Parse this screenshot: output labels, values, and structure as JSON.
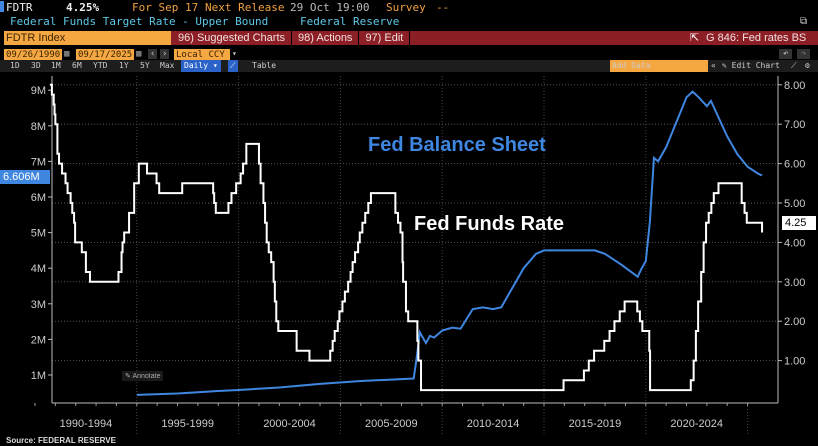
{
  "header": {
    "ticker": "FDTR",
    "value": "4.25%",
    "for_label": "For Sep 17",
    "next_release_label": "Next Release",
    "next_release_value": "29 Oct 19:00",
    "survey_label": "Survey",
    "survey_value": "--",
    "description": "Federal Funds Target Rate - Upper Bound",
    "source_name": "Federal Reserve"
  },
  "toolbar": {
    "security": "FDTR Index",
    "suggested": "96) Suggested Charts",
    "actions": "98) Actions",
    "edit": "97) Edit",
    "chart_name": "G 846: Fed rates BS",
    "start_date": "09/26/1990",
    "end_date": "09/17/2025",
    "currency": "Local CCY",
    "periods": [
      "1D",
      "3D",
      "1M",
      "6M",
      "YTD",
      "1Y",
      "5Y",
      "Max"
    ],
    "frequency": "Daily",
    "table_label": "Table",
    "add_data_placeholder": "Add Data",
    "edit_chart": "Edit Chart",
    "annotate": "Annotate"
  },
  "chart_data": {
    "type": "line",
    "x_tick_labels": [
      "1990-1994",
      "1995-1999",
      "2000-2004",
      "2005-2009",
      "2010-2014",
      "2015-2019",
      "2020-2024"
    ],
    "xlim": [
      1990,
      2025.8
    ],
    "left_axis": {
      "ticks": [
        "1M",
        "2M",
        "3M",
        "4M",
        "5M",
        "6M",
        "7M",
        "8M",
        "9M"
      ],
      "ylim": [
        0,
        9.2
      ]
    },
    "right_axis": {
      "ticks": [
        "1.00",
        "2.00",
        "3.00",
        "4.00",
        "5.00",
        "6.00",
        "7.00",
        "8.00"
      ],
      "ylim": [
        0,
        8.2
      ]
    },
    "grid": true,
    "source": "Source: FEDERAL RESERVE",
    "series": [
      {
        "name": "Fed Balance Sheet",
        "axis": "left",
        "color": "#3f86e0",
        "last_label": "6.606M",
        "points": [
          [
            1995,
            0.44
          ],
          [
            1997,
            0.48
          ],
          [
            1999,
            0.55
          ],
          [
            2000,
            0.58
          ],
          [
            2002,
            0.65
          ],
          [
            2004,
            0.75
          ],
          [
            2006,
            0.83
          ],
          [
            2008.6,
            0.9
          ],
          [
            2008.75,
            1.5
          ],
          [
            2008.9,
            2.2
          ],
          [
            2009.2,
            1.9
          ],
          [
            2009.4,
            2.1
          ],
          [
            2009.6,
            2.05
          ],
          [
            2010,
            2.25
          ],
          [
            2010.5,
            2.33
          ],
          [
            2010.9,
            2.3
          ],
          [
            2011.5,
            2.85
          ],
          [
            2012,
            2.9
          ],
          [
            2012.5,
            2.85
          ],
          [
            2012.9,
            2.9
          ],
          [
            2013.5,
            3.5
          ],
          [
            2014,
            4.0
          ],
          [
            2014.6,
            4.4
          ],
          [
            2015,
            4.5
          ],
          [
            2017.5,
            4.5
          ],
          [
            2018,
            4.4
          ],
          [
            2018.8,
            4.1
          ],
          [
            2019.6,
            3.76
          ],
          [
            2019.8,
            4.0
          ],
          [
            2020.0,
            4.2
          ],
          [
            2020.2,
            5.3
          ],
          [
            2020.4,
            7.1
          ],
          [
            2020.6,
            7.0
          ],
          [
            2021,
            7.4
          ],
          [
            2021.5,
            8.1
          ],
          [
            2022.0,
            8.8
          ],
          [
            2022.3,
            8.96
          ],
          [
            2022.6,
            8.8
          ],
          [
            2023.0,
            8.55
          ],
          [
            2023.2,
            8.7
          ],
          [
            2023.6,
            8.2
          ],
          [
            2024.0,
            7.7
          ],
          [
            2024.5,
            7.2
          ],
          [
            2025.0,
            6.85
          ],
          [
            2025.5,
            6.66
          ],
          [
            2025.71,
            6.606
          ]
        ]
      },
      {
        "name": "Fed Funds Rate",
        "axis": "right",
        "color": "#ffffff",
        "last_label": "4.25",
        "step": true,
        "points": [
          [
            1990.73,
            8.0
          ],
          [
            1990.83,
            7.75
          ],
          [
            1990.92,
            7.5
          ],
          [
            1990.96,
            7.25
          ],
          [
            1991.0,
            7.0
          ],
          [
            1991.1,
            6.25
          ],
          [
            1991.18,
            6.0
          ],
          [
            1991.33,
            5.75
          ],
          [
            1991.5,
            5.5
          ],
          [
            1991.6,
            5.25
          ],
          [
            1991.75,
            5.0
          ],
          [
            1991.83,
            4.75
          ],
          [
            1991.92,
            4.5
          ],
          [
            1991.97,
            4.0
          ],
          [
            1992.3,
            3.75
          ],
          [
            1992.5,
            3.25
          ],
          [
            1992.7,
            3.0
          ],
          [
            1994.1,
            3.25
          ],
          [
            1994.25,
            3.75
          ],
          [
            1994.3,
            4.0
          ],
          [
            1994.38,
            4.25
          ],
          [
            1994.62,
            4.75
          ],
          [
            1994.87,
            5.5
          ],
          [
            1995.1,
            6.0
          ],
          [
            1995.5,
            5.75
          ],
          [
            1995.97,
            5.5
          ],
          [
            1996.1,
            5.25
          ],
          [
            1997.23,
            5.5
          ],
          [
            1998.75,
            5.25
          ],
          [
            1998.8,
            5.0
          ],
          [
            1998.88,
            4.75
          ],
          [
            1999.5,
            5.0
          ],
          [
            1999.65,
            5.25
          ],
          [
            1999.88,
            5.5
          ],
          [
            2000.1,
            5.75
          ],
          [
            2000.22,
            6.0
          ],
          [
            2000.38,
            6.5
          ],
          [
            2001.0,
            6.0
          ],
          [
            2001.08,
            5.5
          ],
          [
            2001.22,
            5.0
          ],
          [
            2001.3,
            4.5
          ],
          [
            2001.38,
            4.0
          ],
          [
            2001.48,
            3.75
          ],
          [
            2001.6,
            3.5
          ],
          [
            2001.72,
            3.0
          ],
          [
            2001.78,
            2.5
          ],
          [
            2001.85,
            2.0
          ],
          [
            2001.95,
            1.75
          ],
          [
            2002.85,
            1.25
          ],
          [
            2003.48,
            1.0
          ],
          [
            2004.5,
            1.25
          ],
          [
            2004.62,
            1.5
          ],
          [
            2004.72,
            1.75
          ],
          [
            2004.87,
            2.0
          ],
          [
            2004.95,
            2.25
          ],
          [
            2005.1,
            2.5
          ],
          [
            2005.22,
            2.75
          ],
          [
            2005.38,
            3.0
          ],
          [
            2005.5,
            3.25
          ],
          [
            2005.6,
            3.5
          ],
          [
            2005.72,
            3.75
          ],
          [
            2005.87,
            4.0
          ],
          [
            2005.95,
            4.25
          ],
          [
            2006.08,
            4.5
          ],
          [
            2006.22,
            4.75
          ],
          [
            2006.37,
            5.0
          ],
          [
            2006.5,
            5.25
          ],
          [
            2007.7,
            4.75
          ],
          [
            2007.83,
            4.5
          ],
          [
            2007.95,
            4.25
          ],
          [
            2008.05,
            3.5
          ],
          [
            2008.08,
            3.0
          ],
          [
            2008.22,
            2.25
          ],
          [
            2008.33,
            2.0
          ],
          [
            2008.78,
            1.5
          ],
          [
            2008.83,
            1.0
          ],
          [
            2008.96,
            0.25
          ],
          [
            2015.96,
            0.5
          ],
          [
            2016.96,
            0.75
          ],
          [
            2017.2,
            1.0
          ],
          [
            2017.46,
            1.25
          ],
          [
            2017.96,
            1.5
          ],
          [
            2018.22,
            1.75
          ],
          [
            2018.46,
            2.0
          ],
          [
            2018.72,
            2.25
          ],
          [
            2018.96,
            2.5
          ],
          [
            2019.58,
            2.25
          ],
          [
            2019.71,
            2.0
          ],
          [
            2019.83,
            1.75
          ],
          [
            2020.17,
            1.25
          ],
          [
            2020.21,
            0.25
          ],
          [
            2022.21,
            0.5
          ],
          [
            2022.35,
            1.0
          ],
          [
            2022.46,
            1.75
          ],
          [
            2022.57,
            2.5
          ],
          [
            2022.72,
            3.25
          ],
          [
            2022.84,
            4.0
          ],
          [
            2022.96,
            4.5
          ],
          [
            2023.09,
            4.75
          ],
          [
            2023.22,
            5.0
          ],
          [
            2023.34,
            5.25
          ],
          [
            2023.57,
            5.5
          ],
          [
            2024.71,
            5.0
          ],
          [
            2024.85,
            4.75
          ],
          [
            2024.96,
            4.5
          ],
          [
            2025.71,
            4.25
          ]
        ]
      }
    ]
  }
}
